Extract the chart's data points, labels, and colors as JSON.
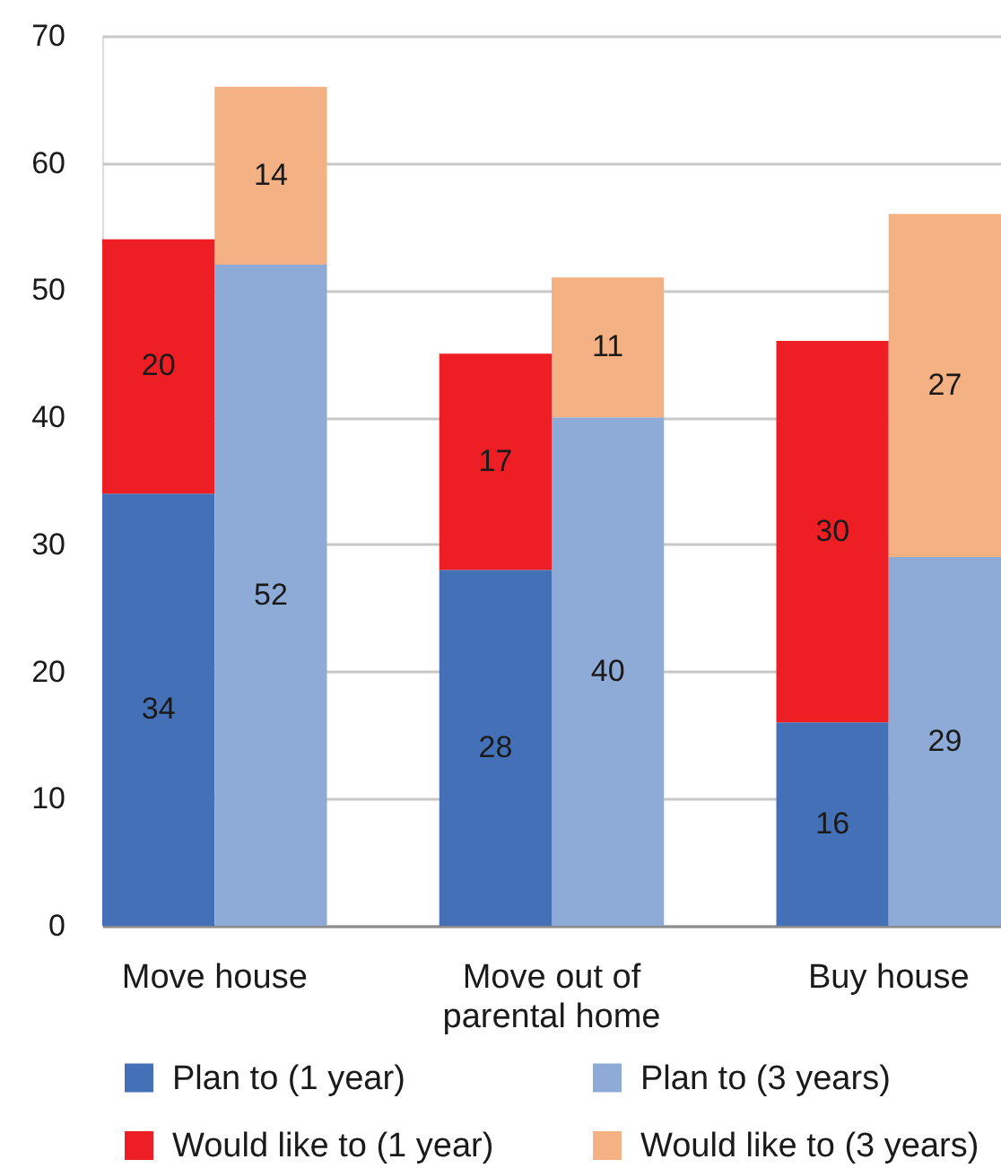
{
  "chart_data": {
    "type": "bar",
    "stacked": true,
    "categories": [
      "Move house",
      null,
      null,
      "Move out of parental home",
      null,
      null,
      "Buy house",
      null
    ],
    "series": [
      {
        "name": "Plan to (1 year)",
        "color": "#4470b7",
        "values": [
          34,
          null,
          null,
          28,
          null,
          null,
          16,
          null
        ]
      },
      {
        "name": "Would like to (1 year)",
        "color": "#ed1f24",
        "values": [
          20,
          null,
          null,
          17,
          null,
          null,
          30,
          null
        ]
      },
      {
        "name": "Plan to (3 years)",
        "color": "#8eaad7",
        "values": [
          null,
          52,
          null,
          null,
          40,
          null,
          null,
          29
        ]
      },
      {
        "name": "Would like to (3 years)",
        "color": "#f4b183",
        "values": [
          null,
          14,
          null,
          null,
          11,
          null,
          null,
          27
        ]
      }
    ],
    "ylim": [
      0,
      70
    ],
    "yticks": [
      0,
      10,
      20,
      30,
      40,
      50,
      60,
      70
    ],
    "grid": "y",
    "legend": "bottom",
    "data_labels": true
  }
}
